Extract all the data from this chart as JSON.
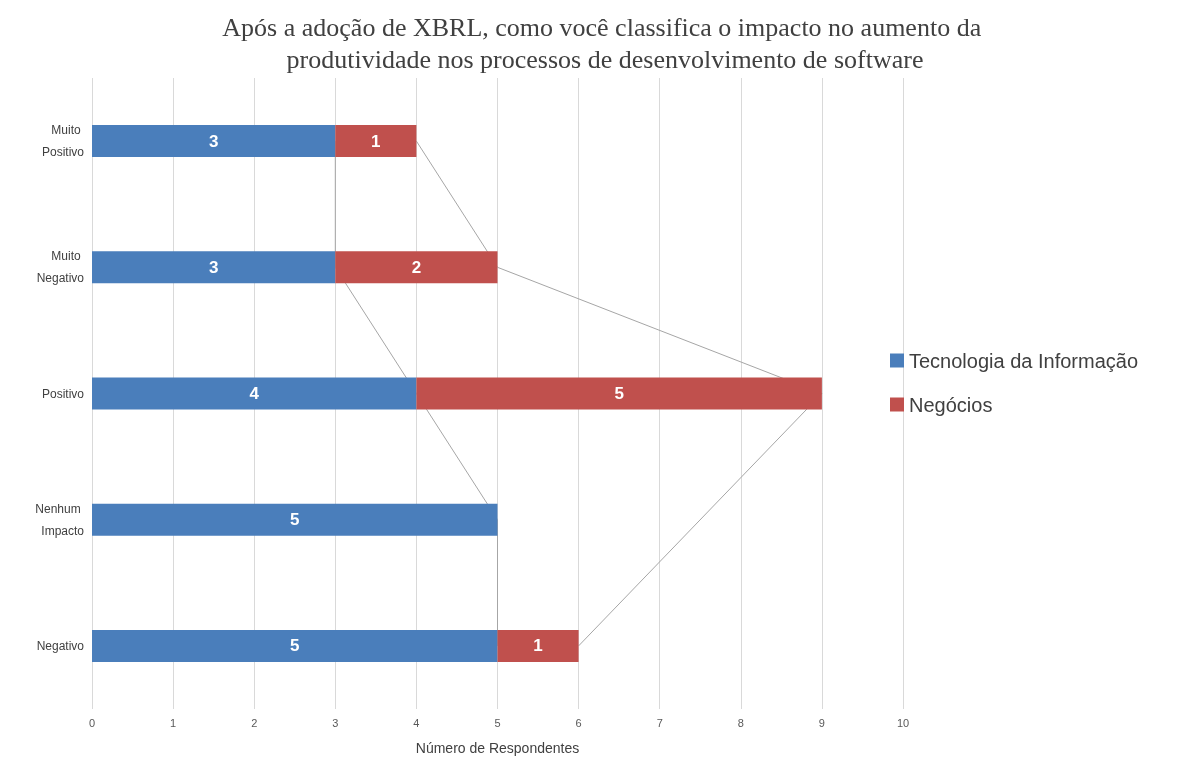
{
  "chart_data": {
    "type": "bar",
    "orientation": "horizontal",
    "stacked": true,
    "title": "Após a adoção de XBRL, como você classifica o impacto no aumento da produtividade nos processos de desenvolvimento de software",
    "xlabel": "Número de Respondentes",
    "categories": [
      "Muito Positivo",
      "Muito Negativo",
      "Positivo",
      "Nenhum Impacto",
      "Negativo"
    ],
    "series": [
      {
        "name": "Tecnologia da Informação",
        "color": "#4a7ebb",
        "values": [
          3,
          3,
          4,
          5,
          5
        ]
      },
      {
        "name": "Negócios",
        "color": "#c0504d",
        "values": [
          1,
          2,
          5,
          null,
          1
        ]
      }
    ],
    "xlim": [
      0,
      10
    ],
    "xticks": [
      0,
      1,
      2,
      3,
      4,
      5,
      6,
      7,
      8,
      9,
      10
    ],
    "grid": "x",
    "legend": "right",
    "data_labels": true
  }
}
